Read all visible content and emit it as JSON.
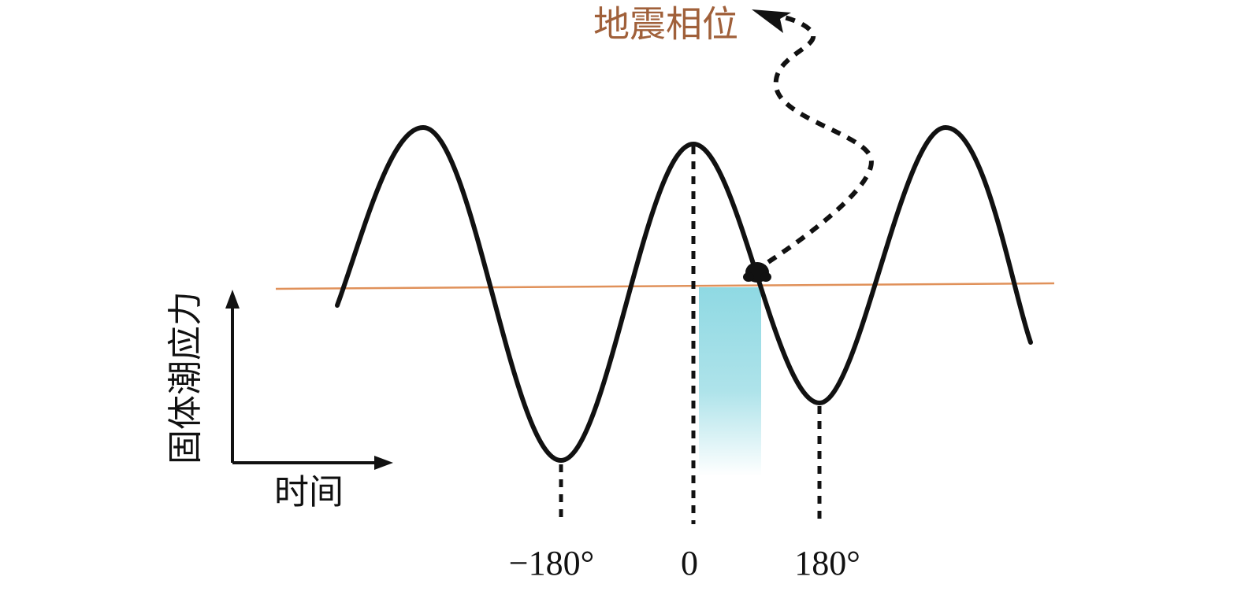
{
  "title": "地震相位",
  "y_axis_label": "固体潮应力",
  "x_axis_label": "时间",
  "phase_labels": [
    "−180°",
    "0",
    "180°"
  ]
}
